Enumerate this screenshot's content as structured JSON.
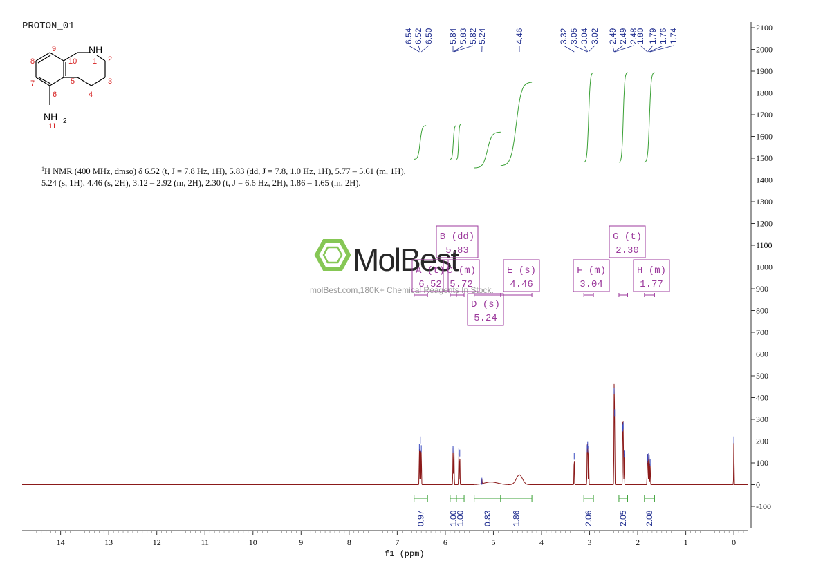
{
  "title": "PROTON_01",
  "structure": {
    "atoms": [
      {
        "id": "1",
        "text": "NH",
        "color": "#000000",
        "label": "1"
      },
      {
        "id": "11",
        "text": "NH2",
        "color": "#000000",
        "label": "11"
      }
    ],
    "ring_numbers": [
      "1",
      "2",
      "3",
      "4",
      "5",
      "6",
      "7",
      "8",
      "9",
      "10",
      "11"
    ],
    "nh_label": "NH",
    "nh2_label": "NH",
    "nh2_sub": "2"
  },
  "nmr_text": {
    "part1": "H NMR (400 MHz, dmso) δ 6.52 (t, ",
    "sup": "1",
    "j": "J",
    "line": "H NMR (400 MHz, dmso) δ 6.52 (t, J = 7.8 Hz, 1H), 5.83 (dd, J = 7.8, 1.0 Hz, 1H), 5.77 – 5.61 (m, 1H), 5.24 (s, 1H), 4.46 (s, 2H), 3.12 – 2.92 (m, 2H), 2.30 (t, J = 6.6 Hz, 2H), 1.86 – 1.65 (m, 2H)."
  },
  "watermark": {
    "brand": "MolBest",
    "tagline": "molBest.com,180K+ Chemical Reagents In Stock."
  },
  "chart_data": {
    "type": "line",
    "xlabel": "f1 (ppm)",
    "xlim": [
      14.8,
      -0.3
    ],
    "x_ticks": [
      14,
      13,
      12,
      11,
      10,
      9,
      8,
      7,
      6,
      5,
      4,
      3,
      2,
      1,
      0
    ],
    "ylim": [
      -200,
      2150
    ],
    "y_ticks": [
      2100,
      2000,
      1900,
      1800,
      1700,
      1600,
      1500,
      1400,
      1300,
      1200,
      1100,
      1000,
      900,
      800,
      700,
      600,
      500,
      400,
      300,
      200,
      100,
      0,
      -100
    ],
    "peaks": [
      {
        "ppm": 6.54,
        "height": 180
      },
      {
        "ppm": 6.52,
        "height": 215
      },
      {
        "ppm": 6.5,
        "height": 175
      },
      {
        "ppm": 5.84,
        "height": 170
      },
      {
        "ppm": 5.82,
        "height": 165
      },
      {
        "ppm": 5.72,
        "height": 160
      },
      {
        "ppm": 5.7,
        "height": 155
      },
      {
        "ppm": 5.24,
        "height": 25
      },
      {
        "ppm": 4.46,
        "height": 45,
        "broad": true
      },
      {
        "ppm": 3.32,
        "height": 140
      },
      {
        "ppm": 3.05,
        "height": 175
      },
      {
        "ppm": 3.04,
        "height": 190
      },
      {
        "ppm": 3.02,
        "height": 170
      },
      {
        "ppm": 2.49,
        "height": 440
      },
      {
        "ppm": 2.48,
        "height": 340
      },
      {
        "ppm": 2.31,
        "height": 270
      },
      {
        "ppm": 2.3,
        "height": 280
      },
      {
        "ppm": 2.28,
        "height": 150
      },
      {
        "ppm": 1.8,
        "height": 125
      },
      {
        "ppm": 1.79,
        "height": 135
      },
      {
        "ppm": 1.77,
        "height": 140
      },
      {
        "ppm": 1.76,
        "height": 130
      },
      {
        "ppm": 1.74,
        "height": 110
      },
      {
        "ppm": 0.0,
        "height": 215
      }
    ],
    "peak_labels": [
      "6.54",
      "6.52",
      "6.50",
      "5.84",
      "5.83",
      "5.82",
      "5.24",
      "4.46",
      "3.32",
      "3.05",
      "3.04",
      "3.02",
      "2.49",
      "2.49",
      "2.48",
      "1.80",
      "1.79",
      "1.76",
      "1.74"
    ],
    "integrals": [
      {
        "value": "0.97",
        "from": 6.65,
        "to": 6.37
      },
      {
        "value": "1.00",
        "from": 5.9,
        "to": 5.77
      },
      {
        "value": "1.00",
        "from": 5.77,
        "to": 5.61
      },
      {
        "value": "0.83",
        "from": 5.4,
        "to": 4.85
      },
      {
        "value": "1.86",
        "from": 4.85,
        "to": 4.2
      },
      {
        "value": "2.06",
        "from": 3.12,
        "to": 2.92
      },
      {
        "value": "2.05",
        "from": 2.39,
        "to": 2.21
      },
      {
        "value": "2.08",
        "from": 1.86,
        "to": 1.65
      }
    ],
    "multiplets": [
      {
        "letter": "A",
        "type": "(t)",
        "shift": "6.52"
      },
      {
        "letter": "B",
        "type": "(dd)",
        "shift": "5.83"
      },
      {
        "letter": "C",
        "type": "(m)",
        "shift": "5.72"
      },
      {
        "letter": "D",
        "type": "(s)",
        "shift": "5.24"
      },
      {
        "letter": "E",
        "type": "(s)",
        "shift": "4.46"
      },
      {
        "letter": "F",
        "type": "(m)",
        "shift": "3.04"
      },
      {
        "letter": "G",
        "type": "(t)",
        "shift": "2.30"
      },
      {
        "letter": "H",
        "type": "(m)",
        "shift": "1.77"
      }
    ]
  },
  "colors": {
    "spectrum": "#8b1a1a",
    "integral": "#3aa035",
    "labels": "#1f2d8f",
    "boxes": "#9c3a9c",
    "logo": "#7ac143"
  }
}
